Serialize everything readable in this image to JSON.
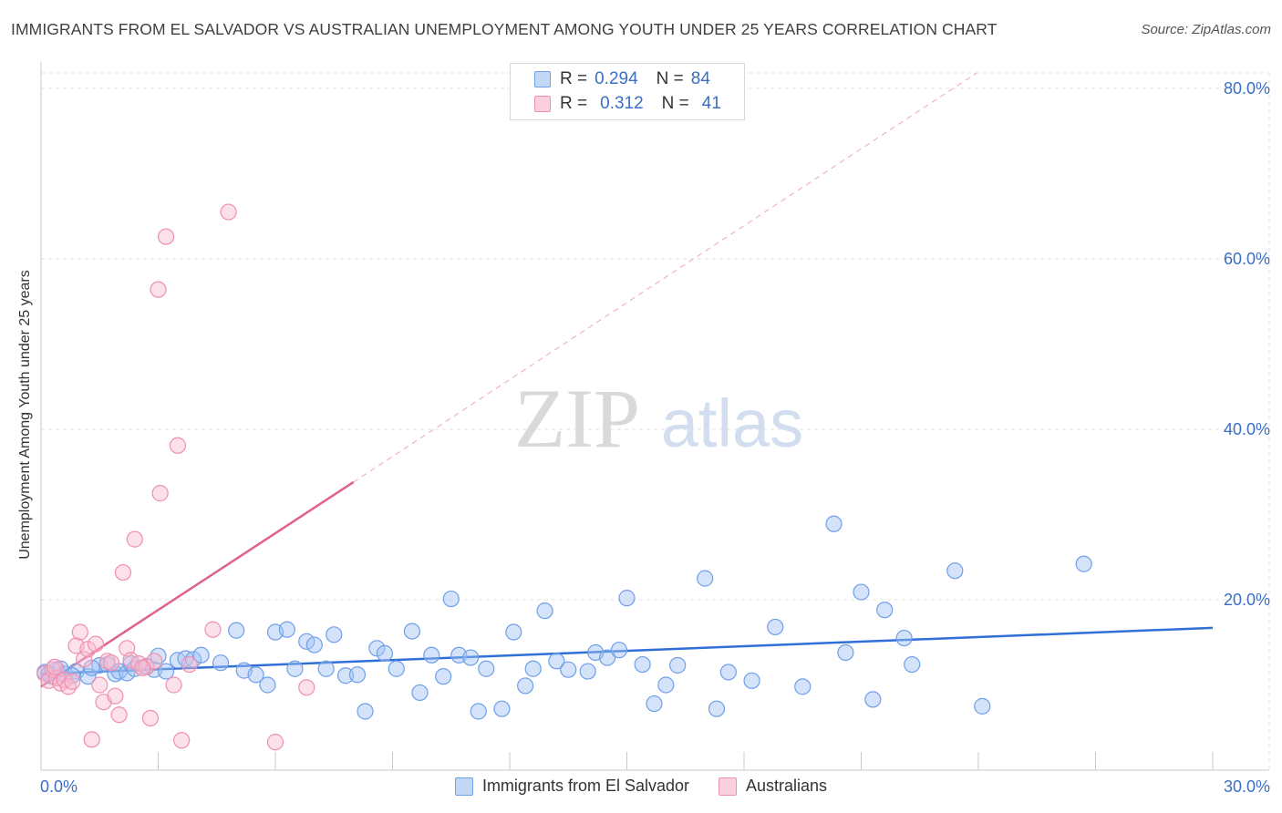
{
  "header": {
    "title": "IMMIGRANTS FROM EL SALVADOR VS AUSTRALIAN UNEMPLOYMENT AMONG YOUTH UNDER 25 YEARS CORRELATION CHART",
    "source": "Source: ZipAtlas.com"
  },
  "watermark": {
    "zip": "ZIP",
    "atlas": "atlas"
  },
  "legend": {
    "rows": [
      {
        "r_label": "R =",
        "r_value": "0.294",
        "n_label": "N =",
        "n_value": "84",
        "color": "#6f9fe8"
      },
      {
        "r_label": "R =",
        "r_value": "0.312",
        "n_label": "N =",
        "n_value": "41",
        "color": "#f08fb0"
      }
    ]
  },
  "bottom_legend": {
    "items": [
      {
        "label": "Immigrants from El Salvador",
        "color": "#6f9fe8"
      },
      {
        "label": "Australians",
        "color": "#f08fb0"
      }
    ]
  },
  "chart_data": {
    "type": "scatter",
    "title": "IMMIGRANTS FROM EL SALVADOR VS AUSTRALIAN UNEMPLOYMENT AMONG YOUTH UNDER 25 YEARS CORRELATION CHART",
    "xlabel": "",
    "ylabel": "Unemployment Among Youth under 25 years",
    "xlim": [
      0,
      30
    ],
    "ylim": [
      0,
      80
    ],
    "x_tick_labels": [
      "0.0%",
      "30.0%"
    ],
    "y_ticks": [
      20,
      40,
      60,
      80
    ],
    "y_tick_labels": [
      "20.0%",
      "40.0%",
      "60.0%",
      "80.0%"
    ],
    "grid": true,
    "legend_position": "top-center",
    "series": [
      {
        "name": "Immigrants from El Salvador",
        "color": "#6f9fe8",
        "trend_color": "#2f6fd6",
        "trend": {
          "x0": 0,
          "y0": 11.3,
          "x1": 30,
          "y1": 16.7
        },
        "points": [
          [
            0.1,
            11.5
          ],
          [
            0.3,
            11.0
          ],
          [
            0.4,
            11.8
          ],
          [
            0.6,
            11.3
          ],
          [
            0.9,
            11.6
          ],
          [
            1.2,
            11.0
          ],
          [
            1.5,
            12.3
          ],
          [
            1.7,
            12.4
          ],
          [
            1.9,
            11.3
          ],
          [
            2.0,
            11.6
          ],
          [
            2.2,
            11.4
          ],
          [
            2.3,
            12.5
          ],
          [
            2.4,
            11.9
          ],
          [
            2.9,
            11.8
          ],
          [
            3.0,
            13.4
          ],
          [
            3.2,
            11.6
          ],
          [
            3.5,
            12.9
          ],
          [
            3.7,
            13.1
          ],
          [
            3.9,
            13.0
          ],
          [
            4.1,
            13.5
          ],
          [
            4.6,
            12.6
          ],
          [
            5.0,
            16.4
          ],
          [
            5.2,
            11.7
          ],
          [
            5.5,
            11.2
          ],
          [
            5.8,
            10.0
          ],
          [
            6.0,
            16.2
          ],
          [
            6.3,
            16.5
          ],
          [
            6.5,
            11.9
          ],
          [
            6.8,
            15.1
          ],
          [
            7.0,
            14.7
          ],
          [
            7.3,
            11.9
          ],
          [
            7.5,
            15.9
          ],
          [
            7.8,
            11.1
          ],
          [
            8.1,
            11.2
          ],
          [
            8.3,
            6.9
          ],
          [
            8.6,
            14.3
          ],
          [
            8.8,
            13.7
          ],
          [
            9.1,
            11.9
          ],
          [
            9.5,
            16.3
          ],
          [
            9.7,
            9.1
          ],
          [
            10.0,
            13.5
          ],
          [
            10.3,
            11.0
          ],
          [
            10.5,
            20.1
          ],
          [
            10.7,
            13.5
          ],
          [
            11.0,
            13.2
          ],
          [
            11.2,
            6.9
          ],
          [
            11.4,
            11.9
          ],
          [
            11.8,
            7.2
          ],
          [
            12.1,
            16.2
          ],
          [
            12.4,
            9.9
          ],
          [
            12.6,
            11.9
          ],
          [
            12.9,
            18.7
          ],
          [
            13.2,
            12.8
          ],
          [
            13.5,
            11.8
          ],
          [
            14.0,
            11.6
          ],
          [
            14.2,
            13.8
          ],
          [
            14.5,
            13.2
          ],
          [
            14.8,
            14.1
          ],
          [
            15.0,
            20.2
          ],
          [
            15.4,
            12.4
          ],
          [
            15.7,
            7.8
          ],
          [
            16.0,
            10.0
          ],
          [
            16.3,
            12.3
          ],
          [
            17.0,
            22.5
          ],
          [
            17.3,
            7.2
          ],
          [
            17.6,
            11.5
          ],
          [
            18.2,
            10.5
          ],
          [
            18.8,
            16.8
          ],
          [
            19.5,
            9.8
          ],
          [
            20.3,
            28.9
          ],
          [
            20.6,
            13.8
          ],
          [
            21.0,
            20.9
          ],
          [
            21.3,
            8.3
          ],
          [
            21.6,
            18.8
          ],
          [
            22.1,
            15.5
          ],
          [
            22.3,
            12.4
          ],
          [
            23.4,
            23.4
          ],
          [
            24.1,
            7.5
          ],
          [
            26.7,
            24.2
          ],
          [
            0.2,
            11.3
          ],
          [
            0.5,
            11.9
          ],
          [
            0.8,
            11.1
          ],
          [
            1.3,
            12.0
          ],
          [
            2.7,
            12.2
          ]
        ]
      },
      {
        "name": "Australians",
        "color": "#f08fb0",
        "trend_color": "#e0608f",
        "trend": {
          "x0": 0,
          "y0": 9.8,
          "x1": 8.0,
          "y1": 33.8
        },
        "trend_dashed": {
          "x0": 8.0,
          "y0": 33.8,
          "x1": 30,
          "y1": 100
        },
        "points": [
          [
            0.1,
            11.3
          ],
          [
            0.2,
            10.5
          ],
          [
            0.3,
            11.8
          ],
          [
            0.4,
            10.8
          ],
          [
            0.5,
            10.2
          ],
          [
            0.6,
            10.6
          ],
          [
            0.7,
            9.8
          ],
          [
            0.8,
            10.4
          ],
          [
            0.9,
            14.6
          ],
          [
            1.0,
            16.2
          ],
          [
            1.1,
            13.0
          ],
          [
            1.2,
            14.2
          ],
          [
            1.3,
            3.6
          ],
          [
            1.4,
            14.8
          ],
          [
            1.5,
            10.0
          ],
          [
            1.6,
            8.0
          ],
          [
            1.7,
            12.8
          ],
          [
            1.9,
            8.7
          ],
          [
            2.0,
            6.5
          ],
          [
            2.1,
            23.2
          ],
          [
            2.2,
            14.3
          ],
          [
            2.3,
            12.9
          ],
          [
            2.4,
            27.1
          ],
          [
            2.5,
            12.5
          ],
          [
            2.7,
            12.1
          ],
          [
            2.8,
            6.1
          ],
          [
            2.9,
            12.8
          ],
          [
            3.0,
            56.4
          ],
          [
            3.05,
            32.5
          ],
          [
            3.2,
            62.6
          ],
          [
            3.4,
            10.0
          ],
          [
            3.5,
            38.1
          ],
          [
            3.6,
            3.5
          ],
          [
            3.8,
            12.4
          ],
          [
            4.4,
            16.5
          ],
          [
            4.8,
            65.5
          ],
          [
            6.0,
            3.3
          ],
          [
            6.8,
            9.7
          ],
          [
            1.8,
            12.6
          ],
          [
            2.6,
            12.0
          ],
          [
            0.35,
            12.1
          ]
        ]
      }
    ]
  }
}
